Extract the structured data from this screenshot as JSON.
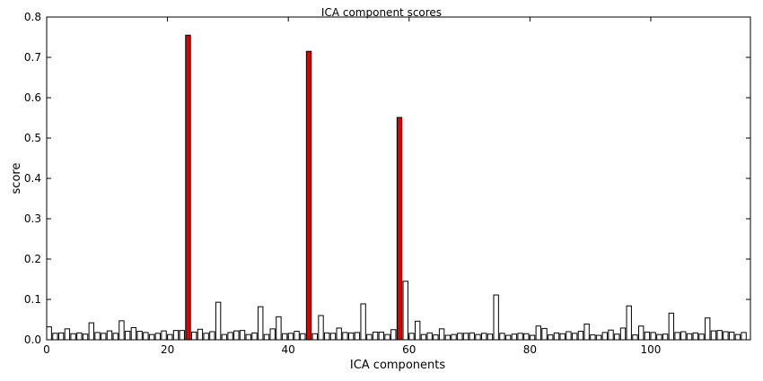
{
  "chart_data": {
    "type": "bar",
    "title": "ICA component scores",
    "xlabel": "ICA components",
    "ylabel": "score",
    "xlim": [
      0,
      116.5
    ],
    "ylim": [
      0,
      0.8
    ],
    "xticks": [
      "0",
      "20",
      "40",
      "60",
      "80",
      "100"
    ],
    "xtick_values": [
      0,
      20,
      40,
      60,
      80,
      100
    ],
    "yticks": [
      "0.0",
      "0.1",
      "0.2",
      "0.3",
      "0.4",
      "0.5",
      "0.6",
      "0.7",
      "0.8"
    ],
    "ytick_values": [
      0,
      0.1,
      0.2,
      0.3,
      0.4,
      0.5,
      0.6,
      0.7,
      0.8
    ],
    "grid": false,
    "bar_color": "#ffffff",
    "highlight_color": "#dd0000",
    "edge_color": "#000000",
    "highlighted_components": [
      23,
      43,
      58
    ],
    "values": [
      0.032,
      0.016,
      0.017,
      0.027,
      0.015,
      0.017,
      0.014,
      0.042,
      0.018,
      0.016,
      0.022,
      0.016,
      0.047,
      0.021,
      0.03,
      0.021,
      0.018,
      0.013,
      0.016,
      0.022,
      0.013,
      0.023,
      0.023,
      0.755,
      0.019,
      0.026,
      0.016,
      0.02,
      0.093,
      0.013,
      0.018,
      0.022,
      0.023,
      0.013,
      0.017,
      0.082,
      0.013,
      0.027,
      0.057,
      0.015,
      0.016,
      0.021,
      0.015,
      0.715,
      0.015,
      0.06,
      0.017,
      0.016,
      0.029,
      0.018,
      0.017,
      0.018,
      0.089,
      0.013,
      0.019,
      0.019,
      0.013,
      0.025,
      0.551,
      0.145,
      0.016,
      0.046,
      0.013,
      0.017,
      0.012,
      0.027,
      0.011,
      0.013,
      0.016,
      0.016,
      0.017,
      0.013,
      0.016,
      0.014,
      0.111,
      0.016,
      0.011,
      0.014,
      0.016,
      0.015,
      0.011,
      0.034,
      0.028,
      0.012,
      0.017,
      0.015,
      0.02,
      0.016,
      0.021,
      0.039,
      0.012,
      0.011,
      0.018,
      0.024,
      0.014,
      0.029,
      0.084,
      0.012,
      0.034,
      0.019,
      0.018,
      0.013,
      0.014,
      0.066,
      0.018,
      0.02,
      0.015,
      0.017,
      0.014,
      0.054,
      0.022,
      0.023,
      0.02,
      0.019,
      0.013,
      0.018
    ]
  }
}
